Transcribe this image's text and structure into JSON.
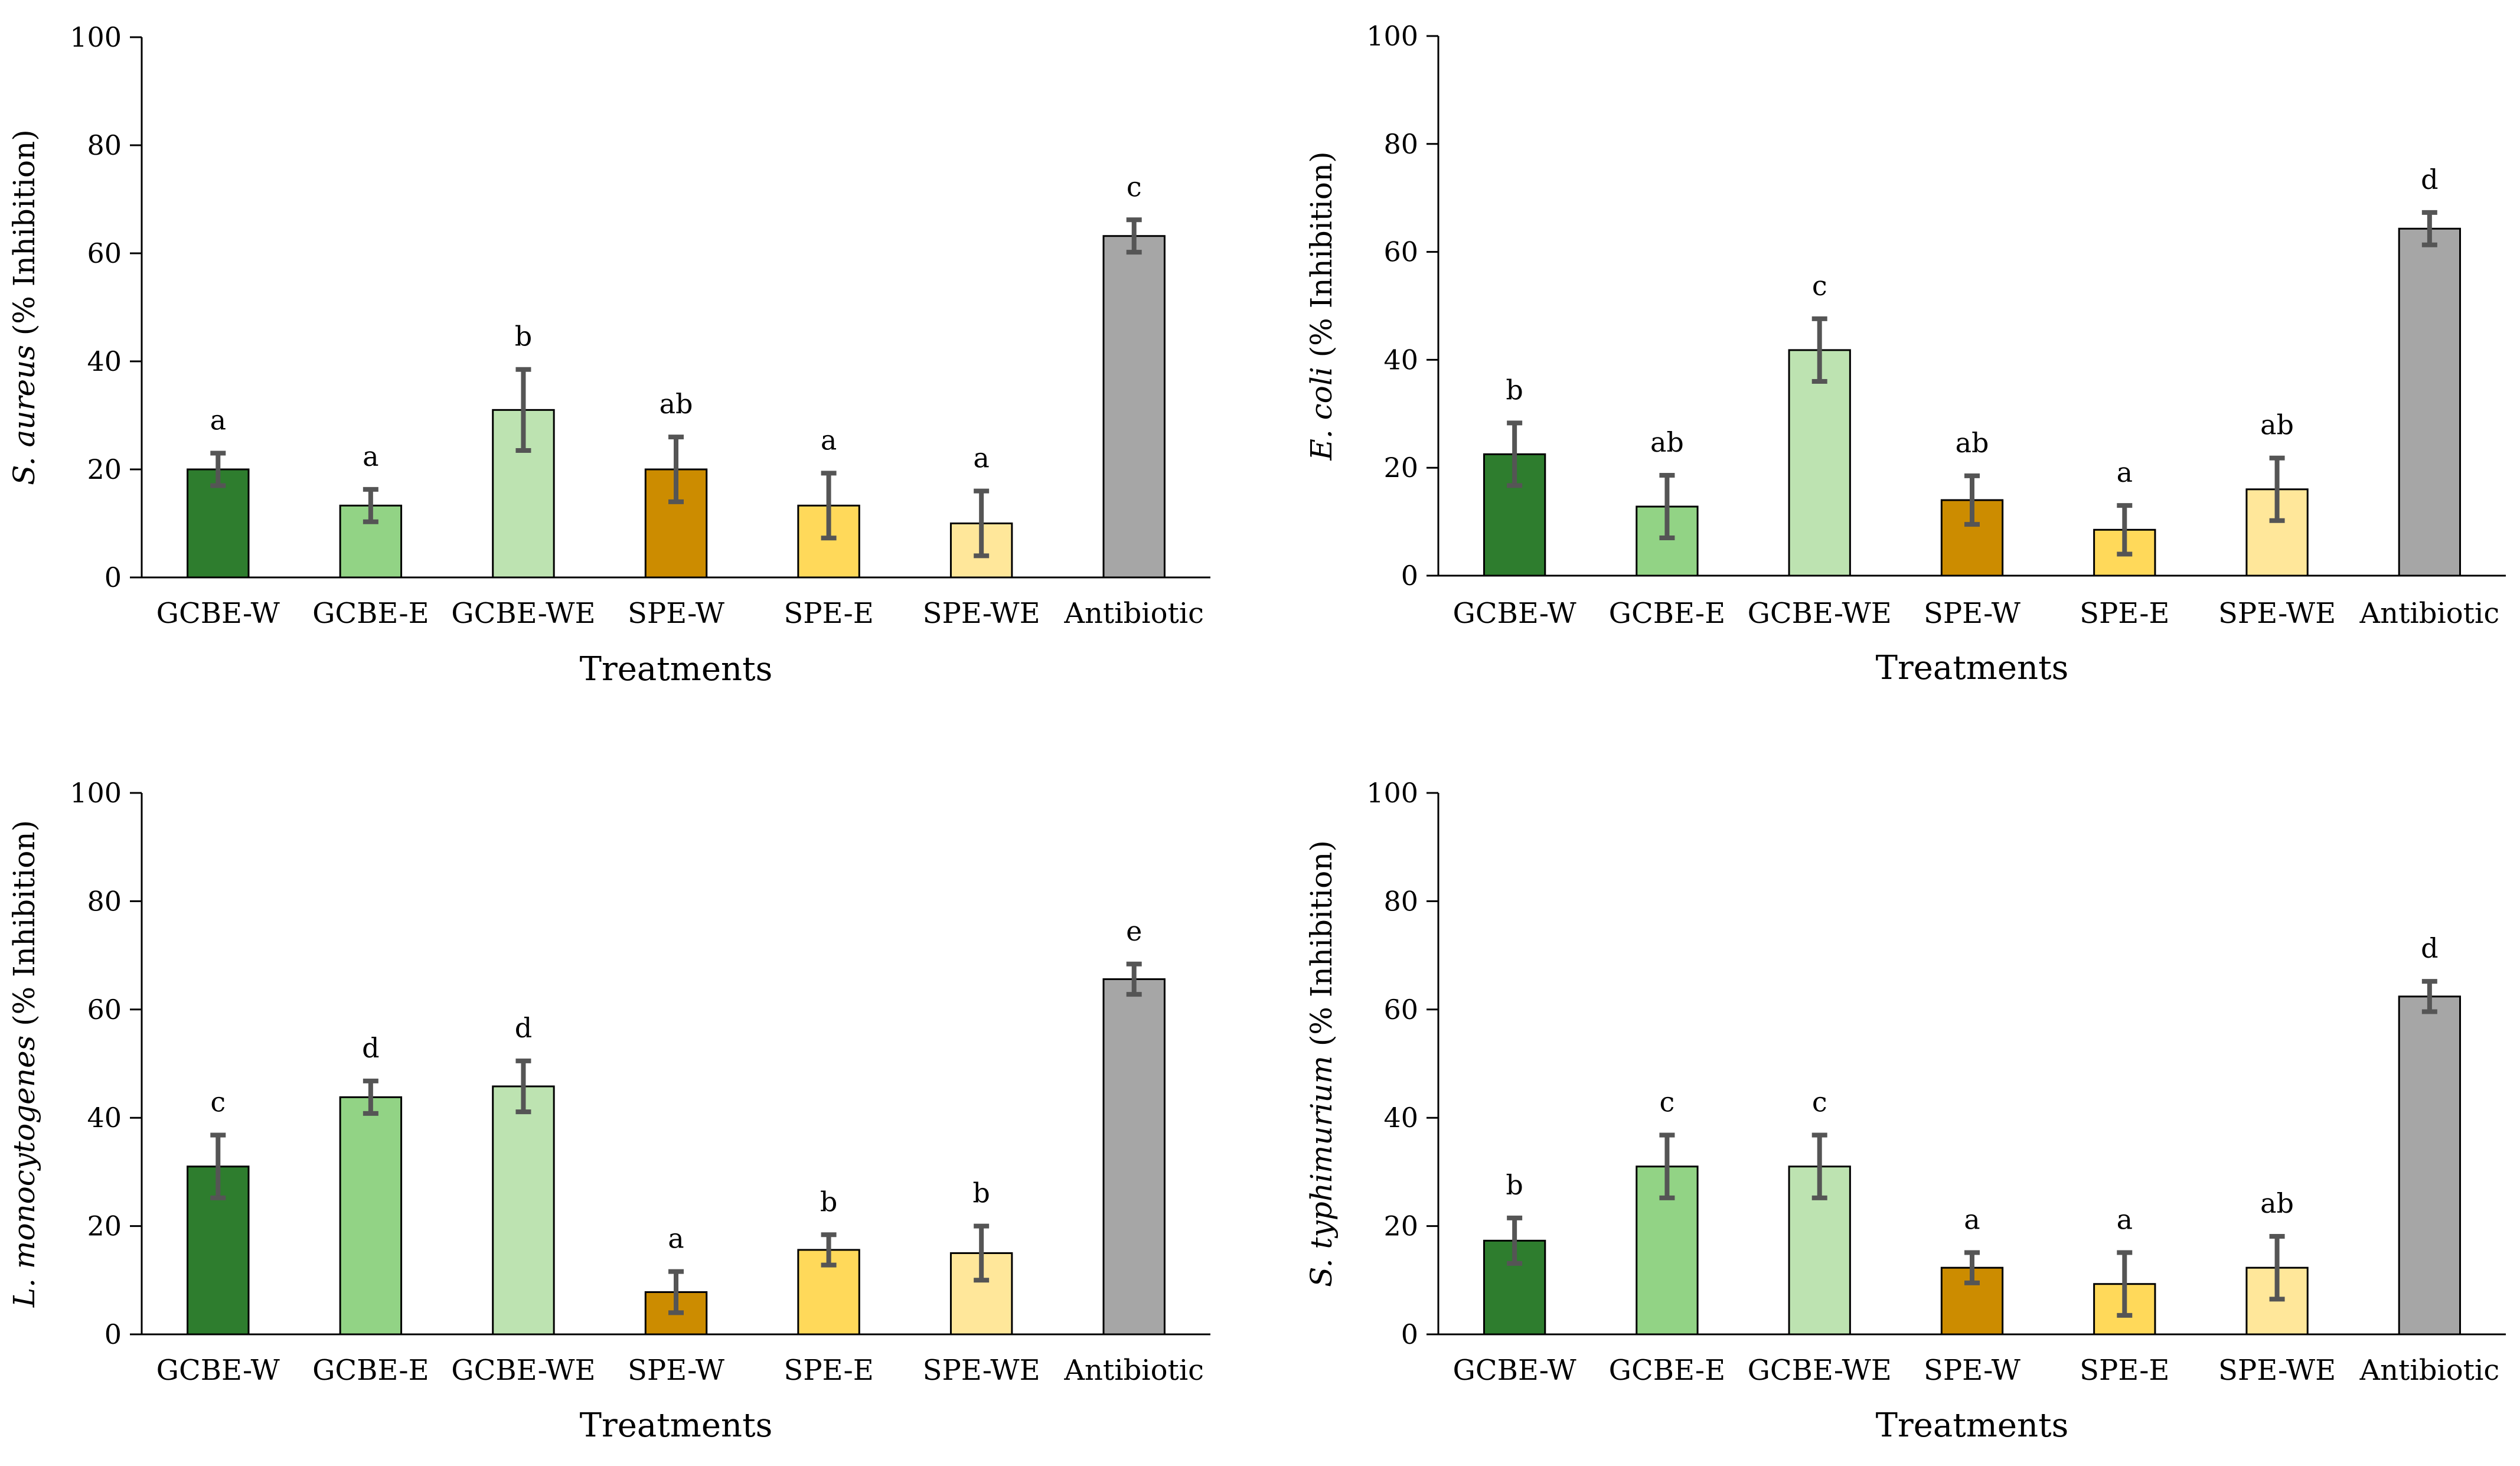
{
  "colors": {
    "GCBE-W": "#2e7d2e",
    "GCBE-E": "#92d385",
    "GCBE-WE": "#bde3b1",
    "SPE-W": "#cc8c00",
    "SPE-E": "#ffd95a",
    "SPE-WE": "#ffe79a",
    "Antibiotic": "#a6a6a6",
    "axis": "#000000",
    "error_bar": "#555555",
    "bar_outline": "#000000"
  },
  "chart_data": [
    {
      "type": "bar",
      "position": "top-left",
      "categories": [
        "GCBE-W",
        "GCBE-E",
        "GCBE-WE",
        "SPE-W",
        "SPE-E",
        "SPE-WE",
        "Antibiotic"
      ],
      "values": [
        20,
        13.3,
        31,
        20,
        13.3,
        10,
        63.2
      ],
      "errors": [
        3,
        3,
        7.5,
        6,
        6,
        6,
        3
      ],
      "significance": [
        "a",
        "a",
        "b",
        "ab",
        "a",
        "a",
        "c"
      ],
      "ylabel_italic": "S. aureus",
      "ylabel_rest": " (% Inhibition)",
      "xlabel": "Treatments",
      "ylim": [
        0,
        100
      ],
      "yticks": [
        "0",
        "20",
        "40",
        "60",
        "80",
        "100"
      ]
    },
    {
      "type": "bar",
      "position": "top-right",
      "categories": [
        "GCBE-W",
        "GCBE-E",
        "GCBE-WE",
        "SPE-W",
        "SPE-E",
        "SPE-WE",
        "Antibiotic"
      ],
      "values": [
        22.5,
        12.8,
        41.8,
        14,
        8.5,
        16,
        64.3
      ],
      "errors": [
        5.8,
        5.8,
        5.8,
        4.5,
        4.5,
        5.8,
        3
      ],
      "significance": [
        "b",
        "ab",
        "c",
        "ab",
        "a",
        "ab",
        "d"
      ],
      "ylabel_italic": "E. coli",
      "ylabel_rest": " (% Inhibition)",
      "xlabel": "Treatments",
      "ylim": [
        0,
        100
      ],
      "yticks": [
        "0",
        "20",
        "40",
        "60",
        "80",
        "100"
      ]
    },
    {
      "type": "bar",
      "position": "bottom-left",
      "categories": [
        "GCBE-W",
        "GCBE-E",
        "GCBE-WE",
        "SPE-W",
        "SPE-E",
        "SPE-WE",
        "Antibiotic"
      ],
      "values": [
        31,
        43.8,
        45.8,
        7.8,
        15.6,
        15,
        65.6
      ],
      "errors": [
        5.8,
        3,
        4.7,
        3.8,
        2.8,
        5,
        2.8
      ],
      "significance": [
        "c",
        "d",
        "d",
        "a",
        "b",
        "b",
        "e"
      ],
      "ylabel_italic": "L. monocytogenes",
      "ylabel_rest": " (% Inhibition)",
      "xlabel": "Treatments",
      "ylim": [
        0,
        100
      ],
      "yticks": [
        "0",
        "20",
        "40",
        "60",
        "80",
        "100"
      ]
    },
    {
      "type": "bar",
      "position": "bottom-right",
      "categories": [
        "GCBE-W",
        "GCBE-E",
        "GCBE-WE",
        "SPE-W",
        "SPE-E",
        "SPE-WE",
        "Antibiotic"
      ],
      "values": [
        17.3,
        31,
        31,
        12.3,
        9.3,
        12.3,
        62.4
      ],
      "errors": [
        4.2,
        5.8,
        5.8,
        2.8,
        5.8,
        5.8,
        2.8
      ],
      "significance": [
        "b",
        "c",
        "c",
        "a",
        "a",
        "ab",
        "d"
      ],
      "ylabel_italic": "S. typhimurium",
      "ylabel_rest": " (% Inhibition)",
      "xlabel": "Treatments",
      "ylim": [
        0,
        100
      ],
      "yticks": [
        "0",
        "20",
        "40",
        "60",
        "80",
        "100"
      ]
    }
  ]
}
